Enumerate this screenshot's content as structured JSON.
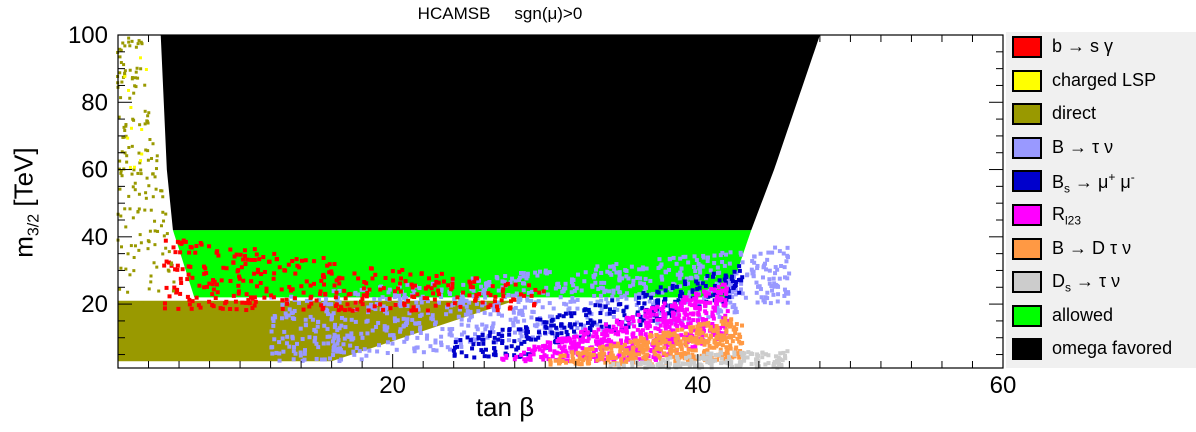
{
  "title": {
    "left": "HCAMSB",
    "right": "sgn(μ)>0"
  },
  "chart_data": {
    "type": "scatter",
    "xlabel": "tan β",
    "ylabel_main": "m",
    "ylabel_sub": "3/2",
    "ylabel_unit": " [TeV]",
    "xlim": [
      2,
      60
    ],
    "ylim": [
      1,
      100
    ],
    "x_ticks": [
      20,
      40,
      60
    ],
    "y_ticks": [
      20,
      40,
      60,
      80,
      100
    ],
    "grid": false,
    "legend_position": "right",
    "series": [
      {
        "key": "bsg",
        "color": "#ff0000",
        "label_parts": [
          "b → s γ"
        ]
      },
      {
        "key": "clsp",
        "color": "#ffff00",
        "label_parts": [
          "charged LSP"
        ]
      },
      {
        "key": "direct",
        "color": "#999900",
        "label_parts": [
          "direct"
        ]
      },
      {
        "key": "btaunu",
        "color": "#9999ff",
        "label_parts": [
          "B → τ ν"
        ]
      },
      {
        "key": "bsmumu",
        "color": "#0000cc",
        "label_parts": [
          "B",
          "s",
          " → μ",
          "+",
          " μ",
          "-"
        ]
      },
      {
        "key": "rl23",
        "color": "#ff00ff",
        "label_parts": [
          "R",
          "l23"
        ]
      },
      {
        "key": "bdtaunu",
        "color": "#ff9944",
        "label_parts": [
          "B → D τ ν"
        ]
      },
      {
        "key": "dstaunu",
        "color": "#cccccc",
        "label_parts": [
          "D",
          "s",
          " → τ ν"
        ]
      },
      {
        "key": "allowed",
        "color": "#00ff00",
        "label_parts": [
          "allowed"
        ]
      },
      {
        "key": "omega",
        "color": "#000000",
        "label_parts": [
          "omega favored"
        ]
      }
    ],
    "regions": {
      "omega": {
        "ymin": 42,
        "ymax": 100,
        "x_left_at": [
          [
            42,
            5.6
          ],
          [
            60,
            5.2
          ],
          [
            100,
            4.8
          ]
        ],
        "x_right_at": [
          [
            42,
            43.5
          ],
          [
            60,
            45
          ],
          [
            80,
            46.5
          ],
          [
            100,
            48
          ]
        ]
      },
      "allowed": {
        "ymin": 22,
        "ymax": 42,
        "x_left_at": [
          [
            22,
            7
          ],
          [
            42,
            5.6
          ]
        ],
        "x_right_at": [
          [
            22,
            42
          ],
          [
            42,
            43.5
          ]
        ]
      },
      "direct": {
        "ymin": 3,
        "ymax": 21,
        "x_left": 2,
        "x_right_at": [
          [
            3,
            16
          ],
          [
            21,
            28
          ]
        ]
      },
      "bsg": {
        "ymin": 18,
        "ymax": 40,
        "x_range": [
          5,
          30
        ]
      },
      "btaunu": {
        "ymin": 3,
        "ymax": 42,
        "x_range": [
          12,
          46
        ]
      },
      "bsmumu": {
        "ymin": 4,
        "ymax": 32,
        "x_range": [
          24,
          43
        ]
      },
      "rl23": {
        "ymin": 3,
        "ymax": 28,
        "x_range": [
          27,
          42
        ]
      },
      "bdtaunu": {
        "ymin": 2,
        "ymax": 16,
        "x_range": [
          30,
          43
        ]
      },
      "dstaunu": {
        "ymin": 1,
        "ymax": 6,
        "x_range": [
          34,
          46
        ]
      }
    }
  }
}
